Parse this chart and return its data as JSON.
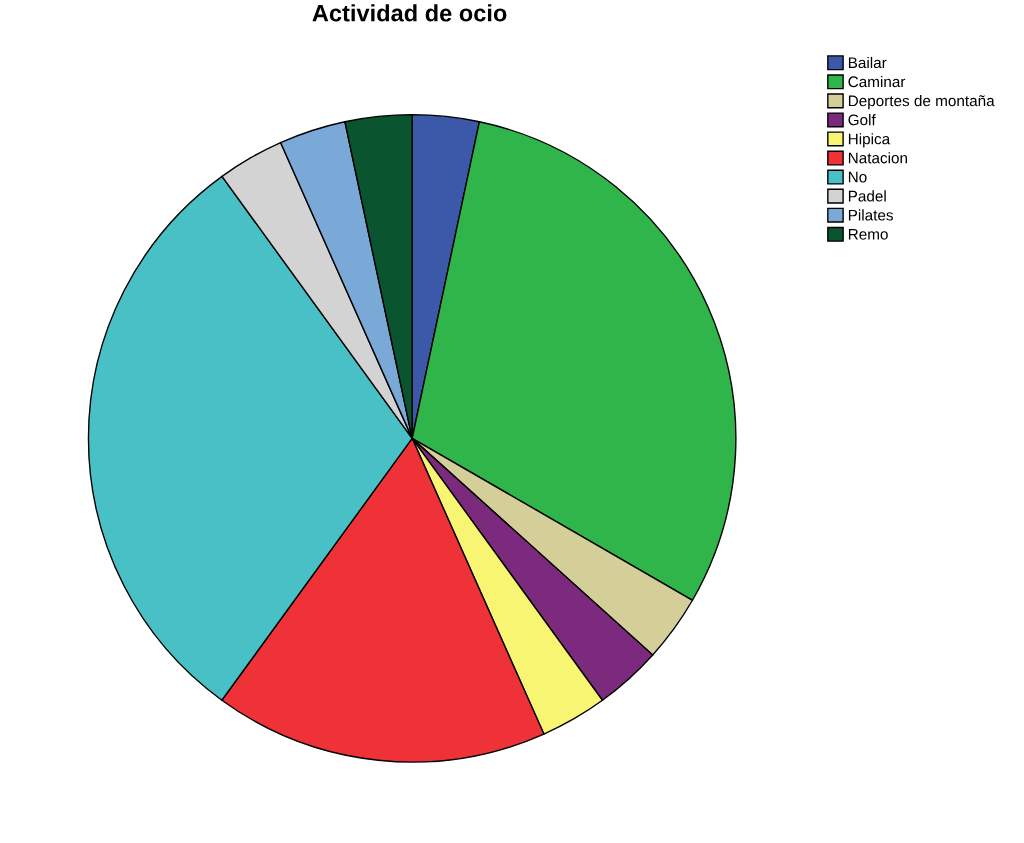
{
  "chart_data": {
    "type": "pie",
    "title": "Actividad de ocio",
    "categories": [
      "Bailar",
      "Caminar",
      "Deportes de montaña",
      "Golf",
      "Hipica",
      "Natacion",
      "No",
      "Padel",
      "Pilates",
      "Remo"
    ],
    "values": [
      3.33,
      30,
      3.33,
      3.33,
      3.33,
      16.67,
      30,
      3.33,
      3.33,
      3.33
    ],
    "colors": [
      "#3c58a8",
      "#30b54a",
      "#d4cf99",
      "#7b2a7d",
      "#f8f572",
      "#ef3238",
      "#48c0c5",
      "#d3d3d3",
      "#7aa9d8",
      "#0b5430"
    ],
    "legend": "top right"
  }
}
